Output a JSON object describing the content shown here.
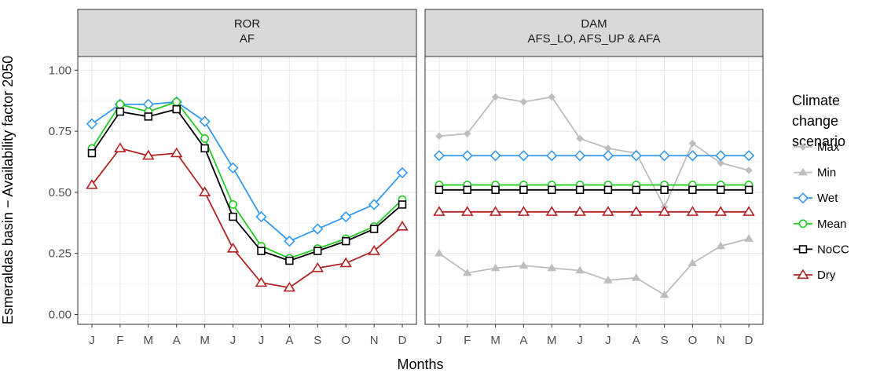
{
  "chart_data": {
    "type": "line",
    "ylabel": "Esmeraldas basin − Availability factor 2050",
    "xlabel": "Months",
    "ylim": [
      0,
      1.05
    ],
    "yticks": [
      0.0,
      0.25,
      0.5,
      0.75,
      1.0
    ],
    "ytick_labels": [
      "0.00",
      "0.25",
      "0.50",
      "0.75",
      "1.00"
    ],
    "categories": [
      "J",
      "F",
      "M",
      "A",
      "M",
      "J",
      "J",
      "A",
      "S",
      "O",
      "N",
      "D"
    ],
    "grid": true,
    "legend": {
      "title_lines": [
        "Climate",
        "change",
        "scenario"
      ],
      "position": "right",
      "entries": [
        {
          "name": "Max",
          "color": "#bdbdbd",
          "marker": "diamond-filled"
        },
        {
          "name": "Min",
          "color": "#bdbdbd",
          "marker": "triangle-filled"
        },
        {
          "name": "Wet",
          "color": "#3399ee",
          "marker": "diamond-open"
        },
        {
          "name": "Mean",
          "color": "#22cc22",
          "marker": "circle-open"
        },
        {
          "name": "NoCC",
          "color": "#000000",
          "marker": "square-open"
        },
        {
          "name": "Dry",
          "color": "#b22222",
          "marker": "triangle-open"
        }
      ]
    },
    "panels": [
      {
        "strip_lines": [
          "ROR",
          "AF"
        ],
        "series": [
          {
            "name": "Wet",
            "values": [
              0.78,
              0.86,
              0.86,
              0.87,
              0.79,
              0.6,
              0.4,
              0.3,
              0.35,
              0.4,
              0.45,
              0.58
            ]
          },
          {
            "name": "Mean",
            "values": [
              0.68,
              0.86,
              0.83,
              0.87,
              0.72,
              0.45,
              0.28,
              0.23,
              0.27,
              0.31,
              0.36,
              0.47
            ]
          },
          {
            "name": "NoCC",
            "values": [
              0.66,
              0.83,
              0.81,
              0.84,
              0.68,
              0.4,
              0.26,
              0.22,
              0.26,
              0.3,
              0.35,
              0.45
            ]
          },
          {
            "name": "Dry",
            "values": [
              0.53,
              0.68,
              0.65,
              0.66,
              0.5,
              0.27,
              0.13,
              0.11,
              0.19,
              0.21,
              0.26,
              0.36
            ]
          }
        ]
      },
      {
        "strip_lines": [
          "DAM",
          "AFS_LO, AFS_UP & AFA"
        ],
        "series": [
          {
            "name": "Max",
            "values": [
              0.73,
              0.74,
              0.89,
              0.87,
              0.89,
              0.72,
              0.68,
              0.66,
              0.44,
              0.7,
              0.62,
              0.59
            ]
          },
          {
            "name": "Min",
            "values": [
              0.25,
              0.17,
              0.19,
              0.2,
              0.19,
              0.18,
              0.14,
              0.15,
              0.08,
              0.21,
              0.28,
              0.31
            ]
          },
          {
            "name": "Wet",
            "values": [
              0.65,
              0.65,
              0.65,
              0.65,
              0.65,
              0.65,
              0.65,
              0.65,
              0.65,
              0.65,
              0.65,
              0.65
            ]
          },
          {
            "name": "Mean",
            "values": [
              0.53,
              0.53,
              0.53,
              0.53,
              0.53,
              0.53,
              0.53,
              0.53,
              0.53,
              0.53,
              0.53,
              0.53
            ]
          },
          {
            "name": "NoCC",
            "values": [
              0.51,
              0.51,
              0.51,
              0.51,
              0.51,
              0.51,
              0.51,
              0.51,
              0.51,
              0.51,
              0.51,
              0.51
            ]
          },
          {
            "name": "Dry",
            "values": [
              0.42,
              0.42,
              0.42,
              0.42,
              0.42,
              0.42,
              0.42,
              0.42,
              0.42,
              0.42,
              0.42,
              0.42
            ]
          }
        ]
      }
    ]
  }
}
